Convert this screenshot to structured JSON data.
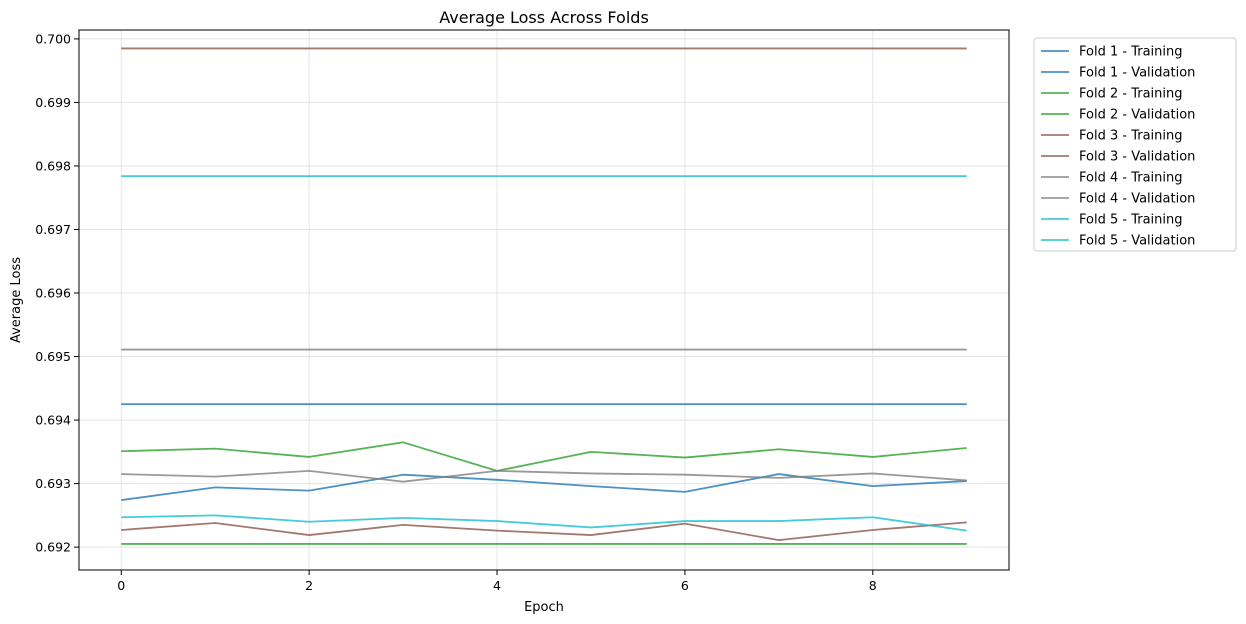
{
  "chart_data": {
    "type": "line",
    "title": "Average Loss Across Folds",
    "xlabel": "Epoch",
    "ylabel": "Average Loss",
    "xlim": [
      -0.45,
      9.45
    ],
    "ylim": [
      0.69164,
      0.70014
    ],
    "xticks": [
      0,
      2,
      4,
      6,
      8
    ],
    "xtick_labels": [
      "0",
      "2",
      "4",
      "6",
      "8"
    ],
    "yticks": [
      0.692,
      0.693,
      0.694,
      0.695,
      0.696,
      0.697,
      0.698,
      0.699,
      0.7
    ],
    "ytick_labels": [
      "0.692",
      "0.693",
      "0.694",
      "0.695",
      "0.696",
      "0.697",
      "0.698",
      "0.699",
      "0.700"
    ],
    "grid": true,
    "legend_position": "outside-top-right",
    "x": [
      0,
      1,
      2,
      3,
      4,
      5,
      6,
      7,
      8,
      9
    ],
    "series": [
      {
        "name": "Fold 1 - Training",
        "color": "#1f77b4",
        "values": [
          0.69274,
          0.69294,
          0.69289,
          0.69314,
          0.69306,
          0.69296,
          0.69287,
          0.69315,
          0.69296,
          0.69304
        ]
      },
      {
        "name": "Fold 1 - Validation",
        "color": "#1f77b4",
        "values": [
          0.69425,
          0.69425,
          0.69425,
          0.69425,
          0.69425,
          0.69425,
          0.69425,
          0.69425,
          0.69425,
          0.69425
        ]
      },
      {
        "name": "Fold 2 - Training",
        "color": "#2ca02c",
        "values": [
          0.69351,
          0.69355,
          0.69342,
          0.69365,
          0.6932,
          0.6935,
          0.69341,
          0.69354,
          0.69342,
          0.69356
        ]
      },
      {
        "name": "Fold 2 - Validation",
        "color": "#2ca02c",
        "values": [
          0.69205,
          0.69205,
          0.69205,
          0.69205,
          0.69205,
          0.69205,
          0.69205,
          0.69205,
          0.69205,
          0.69205
        ]
      },
      {
        "name": "Fold 3 - Training",
        "color": "#8c564b",
        "values": [
          0.69227,
          0.69238,
          0.69219,
          0.69235,
          0.69226,
          0.69219,
          0.69237,
          0.69211,
          0.69227,
          0.69239
        ]
      },
      {
        "name": "Fold 3 - Validation",
        "color": "#8c564b",
        "values": [
          0.69985,
          0.69985,
          0.69985,
          0.69985,
          0.69985,
          0.69985,
          0.69985,
          0.69985,
          0.69985,
          0.69985
        ]
      },
      {
        "name": "Fold 4 - Training",
        "color": "#7f7f7f",
        "values": [
          0.69315,
          0.69311,
          0.6932,
          0.69303,
          0.6932,
          0.69316,
          0.69314,
          0.69309,
          0.69316,
          0.69305
        ]
      },
      {
        "name": "Fold 4 - Validation",
        "color": "#7f7f7f",
        "values": [
          0.69511,
          0.69511,
          0.69511,
          0.69511,
          0.69511,
          0.69511,
          0.69511,
          0.69511,
          0.69511,
          0.69511
        ]
      },
      {
        "name": "Fold 5 - Training",
        "color": "#17becf",
        "values": [
          0.69247,
          0.6925,
          0.6924,
          0.69246,
          0.69241,
          0.69231,
          0.69241,
          0.69241,
          0.69247,
          0.69226
        ]
      },
      {
        "name": "Fold 5 - Validation",
        "color": "#17becf",
        "values": [
          0.69784,
          0.69784,
          0.69784,
          0.69784,
          0.69784,
          0.69784,
          0.69784,
          0.69784,
          0.69784,
          0.69784
        ]
      }
    ]
  }
}
